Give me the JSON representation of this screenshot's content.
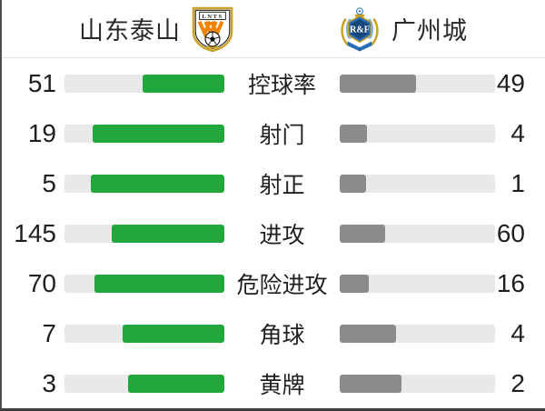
{
  "header": {
    "home_team": {
      "name": "山东泰山",
      "crest_text": "LNTS"
    },
    "away_team": {
      "name": "广州城",
      "crest_text": "R&F"
    }
  },
  "stats": [
    {
      "label": "控球率",
      "home": 51,
      "away": 49
    },
    {
      "label": "射门",
      "home": 19,
      "away": 4
    },
    {
      "label": "射正",
      "home": 5,
      "away": 1
    },
    {
      "label": "进攻",
      "home": 145,
      "away": 60
    },
    {
      "label": "危险进攻",
      "home": 70,
      "away": 16
    },
    {
      "label": "角球",
      "home": 7,
      "away": 4
    },
    {
      "label": "黄牌",
      "home": 3,
      "away": 2
    }
  ],
  "colors": {
    "home_bar": "#20a83c",
    "away_bar": "#8b8b8b",
    "bar_track": "#e9e9e9"
  },
  "chart_data": {
    "type": "bar",
    "orientation": "horizontal-paired",
    "categories": [
      "控球率",
      "射门",
      "射正",
      "进攻",
      "危险进攻",
      "角球",
      "黄牌"
    ],
    "series": [
      {
        "name": "山东泰山",
        "values": [
          51,
          19,
          5,
          145,
          70,
          7,
          3
        ],
        "color": "#20a83c"
      },
      {
        "name": "广州城",
        "values": [
          49,
          4,
          1,
          60,
          16,
          4,
          2
        ],
        "color": "#8b8b8b"
      }
    ],
    "note": "bars grow from center outward, fill = value / (home+away)"
  }
}
